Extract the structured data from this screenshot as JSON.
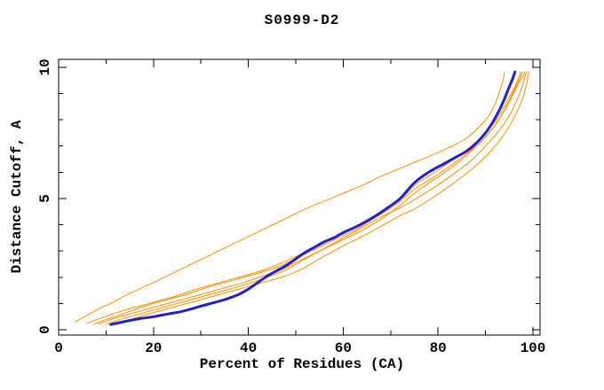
{
  "chart_data": {
    "type": "line",
    "title": "S0999-D2",
    "xlabel": "Percent of Residues (CA)",
    "ylabel": "Distance Cutoff, A",
    "xlim": [
      0,
      101.5
    ],
    "ylim": [
      -0.2,
      10.3
    ],
    "grid": false,
    "legend": "none",
    "frame": "full-box-mirrored-ticks",
    "axis_color": "#000000",
    "x_ticks_major": [
      {
        "value": 0,
        "label": "0"
      },
      {
        "value": 20,
        "label": "20"
      },
      {
        "value": 40,
        "label": "40"
      },
      {
        "value": 60,
        "label": "60"
      },
      {
        "value": 80,
        "label": "80"
      },
      {
        "value": 100,
        "label": "100"
      }
    ],
    "x_ticks_minor": [
      10,
      30,
      50,
      70,
      90
    ],
    "y_ticks_major": [
      {
        "value": 0,
        "label": "0"
      },
      {
        "value": 5,
        "label": "5"
      },
      {
        "value": 10,
        "label": "10"
      }
    ],
    "y_ticks_minor": [
      1,
      2,
      3,
      4,
      6,
      7,
      8,
      9
    ],
    "series": [
      {
        "name": "blue-model",
        "color": "#2222c4",
        "width": 3,
        "points": [
          [
            11,
            0.2
          ],
          [
            14,
            0.32
          ],
          [
            17,
            0.42
          ],
          [
            20,
            0.5
          ],
          [
            23,
            0.6
          ],
          [
            26,
            0.7
          ],
          [
            29,
            0.85
          ],
          [
            32,
            1.0
          ],
          [
            35,
            1.15
          ],
          [
            38,
            1.35
          ],
          [
            40,
            1.55
          ],
          [
            42,
            1.8
          ],
          [
            44,
            2.05
          ],
          [
            46,
            2.25
          ],
          [
            48,
            2.45
          ],
          [
            50,
            2.7
          ],
          [
            52,
            2.95
          ],
          [
            54,
            3.15
          ],
          [
            56,
            3.35
          ],
          [
            58,
            3.5
          ],
          [
            60,
            3.7
          ],
          [
            63,
            3.95
          ],
          [
            66,
            4.25
          ],
          [
            69,
            4.6
          ],
          [
            72,
            5.0
          ],
          [
            75,
            5.6
          ],
          [
            78,
            6.0
          ],
          [
            81,
            6.3
          ],
          [
            84,
            6.6
          ],
          [
            86,
            6.8
          ],
          [
            88,
            7.1
          ],
          [
            90,
            7.5
          ],
          [
            91.5,
            7.9
          ],
          [
            93,
            8.4
          ],
          [
            94,
            8.8
          ],
          [
            95,
            9.25
          ],
          [
            95.7,
            9.55
          ],
          [
            96.2,
            9.82
          ]
        ]
      },
      {
        "name": "orange-outlier",
        "color": "#ff8c00",
        "width": 1,
        "points": [
          [
            3.5,
            0.3
          ],
          [
            5,
            0.45
          ],
          [
            7,
            0.65
          ],
          [
            9,
            0.85
          ],
          [
            11,
            1.0
          ],
          [
            14,
            1.3
          ],
          [
            17,
            1.55
          ],
          [
            20,
            1.8
          ],
          [
            24,
            2.15
          ],
          [
            28,
            2.5
          ],
          [
            32,
            2.85
          ],
          [
            36,
            3.2
          ],
          [
            40,
            3.55
          ],
          [
            44,
            3.9
          ],
          [
            48,
            4.25
          ],
          [
            52,
            4.6
          ],
          [
            56,
            4.9
          ],
          [
            60,
            5.2
          ],
          [
            64,
            5.5
          ],
          [
            68,
            5.85
          ],
          [
            72,
            6.15
          ],
          [
            76,
            6.45
          ],
          [
            80,
            6.75
          ],
          [
            83,
            7.0
          ],
          [
            86,
            7.3
          ],
          [
            88.5,
            7.7
          ],
          [
            90.5,
            8.1
          ],
          [
            92,
            8.6
          ],
          [
            93,
            9.1
          ],
          [
            93.7,
            9.5
          ],
          [
            94,
            9.82
          ]
        ]
      },
      {
        "name": "orange-2",
        "color": "#ff8c00",
        "width": 1,
        "points": [
          [
            6,
            0.25
          ],
          [
            9,
            0.45
          ],
          [
            13,
            0.7
          ],
          [
            17,
            0.9
          ],
          [
            21,
            1.1
          ],
          [
            25,
            1.3
          ],
          [
            29,
            1.55
          ],
          [
            33,
            1.75
          ],
          [
            37,
            1.95
          ],
          [
            41,
            2.15
          ],
          [
            45,
            2.4
          ],
          [
            49,
            2.7
          ],
          [
            53,
            3.05
          ],
          [
            57,
            3.4
          ],
          [
            61,
            3.75
          ],
          [
            65,
            4.15
          ],
          [
            69,
            4.6
          ],
          [
            72,
            4.95
          ],
          [
            75,
            5.5
          ],
          [
            78,
            5.85
          ],
          [
            81,
            6.2
          ],
          [
            84,
            6.6
          ],
          [
            87,
            7.0
          ],
          [
            89.5,
            7.4
          ],
          [
            91.5,
            7.8
          ],
          [
            93,
            8.2
          ],
          [
            94.5,
            8.7
          ],
          [
            96,
            9.2
          ],
          [
            97,
            9.6
          ],
          [
            97.4,
            9.82
          ]
        ]
      },
      {
        "name": "orange-3",
        "color": "#ff8c00",
        "width": 1,
        "points": [
          [
            7.5,
            0.22
          ],
          [
            11,
            0.45
          ],
          [
            15,
            0.7
          ],
          [
            19,
            0.95
          ],
          [
            23,
            1.15
          ],
          [
            27,
            1.35
          ],
          [
            31,
            1.6
          ],
          [
            35,
            1.8
          ],
          [
            39,
            2.0
          ],
          [
            43,
            2.2
          ],
          [
            47,
            2.45
          ],
          [
            51,
            2.8
          ],
          [
            55,
            3.15
          ],
          [
            59,
            3.5
          ],
          [
            63,
            3.85
          ],
          [
            67,
            4.3
          ],
          [
            71,
            4.75
          ],
          [
            75,
            5.35
          ],
          [
            79,
            5.8
          ],
          [
            83,
            6.3
          ],
          [
            86,
            6.7
          ],
          [
            89,
            7.15
          ],
          [
            91,
            7.55
          ],
          [
            93,
            8.05
          ],
          [
            94.5,
            8.55
          ],
          [
            96,
            9.1
          ],
          [
            97.3,
            9.6
          ],
          [
            97.8,
            9.82
          ]
        ]
      },
      {
        "name": "orange-4",
        "color": "#ff8c00",
        "width": 1,
        "points": [
          [
            8.5,
            0.22
          ],
          [
            12,
            0.45
          ],
          [
            16,
            0.65
          ],
          [
            20,
            0.85
          ],
          [
            25,
            1.1
          ],
          [
            30,
            1.35
          ],
          [
            35,
            1.6
          ],
          [
            39,
            1.8
          ],
          [
            43,
            2.05
          ],
          [
            47,
            2.3
          ],
          [
            51,
            2.65
          ],
          [
            55,
            3.0
          ],
          [
            59,
            3.35
          ],
          [
            63,
            3.7
          ],
          [
            67,
            4.1
          ],
          [
            71,
            4.6
          ],
          [
            75,
            5.2
          ],
          [
            79,
            5.7
          ],
          [
            83,
            6.2
          ],
          [
            87,
            6.8
          ],
          [
            90,
            7.35
          ],
          [
            92,
            7.8
          ],
          [
            94,
            8.35
          ],
          [
            95.5,
            8.85
          ],
          [
            97,
            9.4
          ],
          [
            98,
            9.7
          ],
          [
            98.3,
            9.82
          ]
        ]
      },
      {
        "name": "orange-5",
        "color": "#ff8c00",
        "width": 1,
        "points": [
          [
            10,
            0.2
          ],
          [
            14,
            0.45
          ],
          [
            19,
            0.7
          ],
          [
            24,
            0.95
          ],
          [
            29,
            1.2
          ],
          [
            34,
            1.45
          ],
          [
            39,
            1.7
          ],
          [
            44,
            2.0
          ],
          [
            48,
            2.3
          ],
          [
            52,
            2.7
          ],
          [
            56,
            3.1
          ],
          [
            60,
            3.5
          ],
          [
            64,
            3.9
          ],
          [
            68,
            4.3
          ],
          [
            72,
            4.65
          ],
          [
            75,
            4.95
          ],
          [
            79,
            5.4
          ],
          [
            83,
            5.9
          ],
          [
            87,
            6.45
          ],
          [
            90,
            7.0
          ],
          [
            92.5,
            7.5
          ],
          [
            94.5,
            8.0
          ],
          [
            96.5,
            8.7
          ],
          [
            97.8,
            9.3
          ],
          [
            98.6,
            9.82
          ]
        ]
      },
      {
        "name": "orange-6",
        "color": "#ff8c00",
        "width": 1,
        "points": [
          [
            12,
            0.2
          ],
          [
            17,
            0.5
          ],
          [
            23,
            0.8
          ],
          [
            29,
            1.1
          ],
          [
            35,
            1.4
          ],
          [
            40,
            1.65
          ],
          [
            45,
            1.9
          ],
          [
            50,
            2.2
          ],
          [
            55,
            2.7
          ],
          [
            60,
            3.2
          ],
          [
            65,
            3.65
          ],
          [
            69,
            4.05
          ],
          [
            72,
            4.35
          ],
          [
            75,
            4.6
          ],
          [
            79,
            5.05
          ],
          [
            83,
            5.55
          ],
          [
            87,
            6.1
          ],
          [
            90,
            6.6
          ],
          [
            92.5,
            7.1
          ],
          [
            94.5,
            7.6
          ],
          [
            96.5,
            8.25
          ],
          [
            98,
            8.9
          ],
          [
            98.8,
            9.5
          ],
          [
            99.1,
            9.82
          ]
        ]
      }
    ]
  }
}
